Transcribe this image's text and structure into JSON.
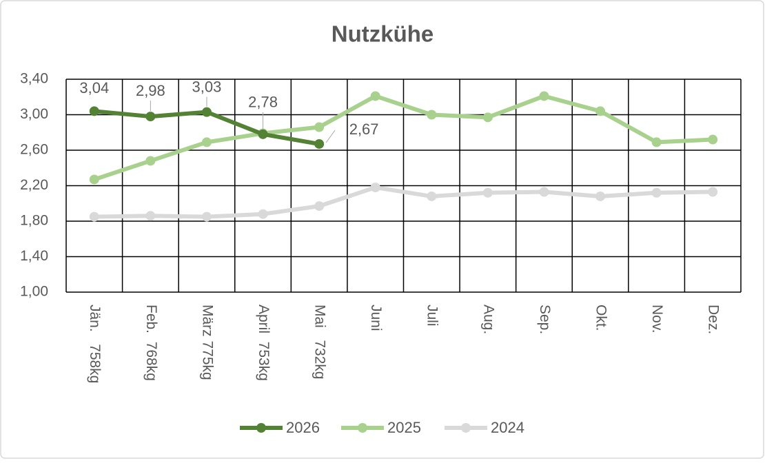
{
  "chart_data": {
    "type": "line",
    "title": "Nutzkühe",
    "categories": [
      "Jän.   758kg",
      "Feb.  768kg",
      "März 775kg",
      "April  753kg",
      "Mai   732kg",
      "Juni",
      "Juli",
      "Aug.",
      "Sep.",
      "Okt.",
      "Nov.",
      "Dez."
    ],
    "series": [
      {
        "name": "2026",
        "color": "#548235",
        "values": [
          3.04,
          2.98,
          3.03,
          2.78,
          2.67,
          null,
          null,
          null,
          null,
          null,
          null,
          null
        ],
        "value_labels": [
          "3,04",
          "2,98",
          "3,03",
          "2,78",
          "2,67",
          null,
          null,
          null,
          null,
          null,
          null,
          null
        ]
      },
      {
        "name": "2025",
        "color": "#a9d18e",
        "values": [
          2.27,
          2.48,
          2.69,
          2.79,
          2.86,
          3.21,
          3.0,
          2.97,
          3.21,
          3.04,
          2.69,
          2.72
        ]
      },
      {
        "name": "2024",
        "color": "#d9d9d9",
        "values": [
          1.85,
          1.86,
          1.85,
          1.88,
          1.97,
          2.18,
          2.08,
          2.12,
          2.13,
          2.08,
          2.12,
          2.13
        ]
      }
    ],
    "ylim": [
      1.0,
      3.4
    ],
    "yticks": [
      {
        "value": 1.0,
        "label": "1,00"
      },
      {
        "value": 1.4,
        "label": "1,40"
      },
      {
        "value": 1.8,
        "label": "1,80"
      },
      {
        "value": 2.2,
        "label": "2,20"
      },
      {
        "value": 2.6,
        "label": "2,60"
      },
      {
        "value": 3.0,
        "label": "3,00"
      },
      {
        "value": 3.4,
        "label": "3,40"
      }
    ],
    "grid": true,
    "legend": "bottom"
  }
}
